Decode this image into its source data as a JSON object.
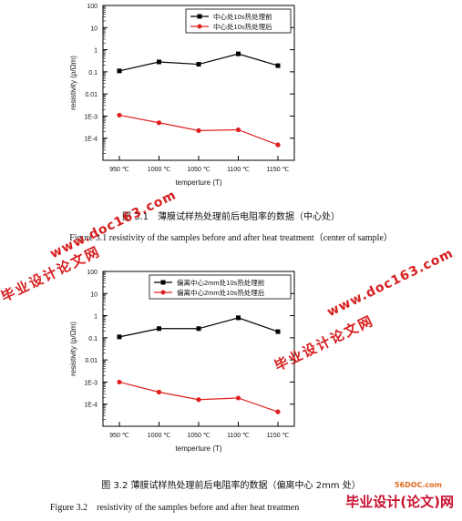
{
  "chart_data": [
    {
      "type": "line",
      "categories": [
        "950 ℃",
        "1000 ℃",
        "1050 ℃",
        "1100 ℃",
        "1150 ℃"
      ],
      "series": [
        {
          "name": "中心处10s热处理前",
          "values": [
            0.11,
            0.28,
            0.22,
            0.65,
            0.19
          ],
          "color": "#000000",
          "marker": "square"
        },
        {
          "name": "中心处10s热处理后",
          "values": [
            0.0011,
            0.0005,
            0.00022,
            0.00024,
            5e-05
          ],
          "color": "#e02020",
          "marker": "circle"
        }
      ],
      "xlabel": "temperture (T)",
      "ylabel": "resistivity (ρ/Ωm)",
      "yscale": "log",
      "ylim": [
        1e-05,
        100
      ],
      "yticks": [
        "100",
        "10",
        "1",
        "0.1",
        "0.01",
        "1E-3",
        "1E-4"
      ],
      "grid": false,
      "legend": "top-right",
      "caption_cn": "图 3.1　薄膜试样热处理前后电阻率的数据（中心处）",
      "caption_en": "Figure 3.1 resistivity of the samples before and after heat treatment（center of sample）"
    },
    {
      "type": "line",
      "categories": [
        "950 ℃",
        "1000 ℃",
        "1050 ℃",
        "1100 ℃",
        "1150 ℃"
      ],
      "series": [
        {
          "name": "偏离中心2mm处10s热处理前",
          "values": [
            0.11,
            0.26,
            0.26,
            0.8,
            0.19
          ],
          "color": "#000000",
          "marker": "square"
        },
        {
          "name": "偏离中心2mm处10s热处理后",
          "values": [
            0.001,
            0.00035,
            0.00016,
            0.00019,
            4.5e-05
          ],
          "color": "#e02020",
          "marker": "circle"
        }
      ],
      "xlabel": "temperture (T)",
      "ylabel": "resistivity (ρ/Ωm)",
      "yscale": "log",
      "ylim": [
        1e-05,
        100
      ],
      "yticks": [
        "100",
        "10",
        "1",
        "0.1",
        "0.01",
        "1E-3",
        "1E-4"
      ],
      "grid": false,
      "legend": "top-right",
      "caption_cn": "图 3.2 薄膜试样热处理前后电阻率的数据（偏离中心 2mm 处）",
      "caption_en": "Figure 3.2　resistivity of the samples before and after heat treatmen"
    }
  ],
  "watermarks": {
    "site": "www.doc163.com",
    "cn": "毕业设计论文网",
    "logo_56": "56DOC.com",
    "logo_bottom": "毕业设计(论文)网"
  }
}
